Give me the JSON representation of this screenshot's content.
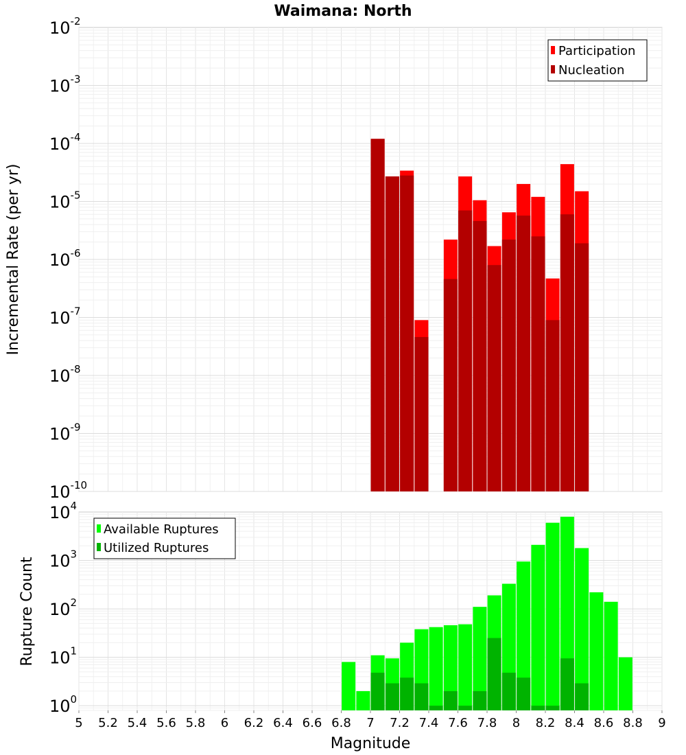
{
  "chart_data": [
    {
      "type": "bar",
      "title": "Waimana: North",
      "xlabel": "Magnitude",
      "ylabel": "Incremental Rate (per yr)",
      "yscale": "log",
      "ylim": [
        1e-10,
        0.01
      ],
      "xlim": [
        5,
        9
      ],
      "grid": true,
      "legend_position": "top-right",
      "x": [
        7.05,
        7.15,
        7.25,
        7.35,
        7.55,
        7.65,
        7.75,
        7.85,
        7.95,
        8.05,
        8.15,
        8.25,
        8.35,
        8.45
      ],
      "series": [
        {
          "name": "Participation",
          "color": "#ff0000",
          "values": [
            0.00012,
            2.7e-05,
            3.4e-05,
            9e-08,
            2.2e-06,
            2.7e-05,
            1.05e-05,
            1.7e-06,
            6.5e-06,
            2e-05,
            1.2e-05,
            4.7e-07,
            4.4e-05,
            1.5e-05
          ]
        },
        {
          "name": "Nucleation",
          "color": "#b30000",
          "values": [
            0.00012,
            2.7e-05,
            2.8e-05,
            4.6e-08,
            4.6e-07,
            7e-06,
            4.6e-06,
            8e-07,
            2.2e-06,
            5.7e-06,
            2.5e-06,
            9e-08,
            6e-06,
            1.9e-06
          ]
        }
      ]
    },
    {
      "type": "bar",
      "xlabel": "Magnitude",
      "ylabel": "Rupture Count",
      "yscale": "log",
      "ylim": [
        0.8,
        10000
      ],
      "xlim": [
        5,
        9
      ],
      "grid": true,
      "legend_position": "top-left",
      "x": [
        6.85,
        6.95,
        7.05,
        7.15,
        7.25,
        7.35,
        7.45,
        7.55,
        7.65,
        7.75,
        7.85,
        7.95,
        8.05,
        8.15,
        8.25,
        8.35,
        8.45,
        8.55,
        8.65,
        8.75
      ],
      "series": [
        {
          "name": "Available Ruptures",
          "color": "#00ff00",
          "values": [
            8,
            2,
            11,
            9.5,
            20,
            38,
            42,
            46,
            48,
            110,
            190,
            330,
            950,
            2100,
            6000,
            8000,
            1800,
            220,
            140,
            10
          ]
        },
        {
          "name": "Utilized Ruptures",
          "color": "#00b300",
          "values": [
            null,
            null,
            4.8,
            2.9,
            3.8,
            2.9,
            1,
            2,
            1,
            2,
            25,
            4.8,
            3.8,
            1,
            1,
            9.5,
            2.9,
            null,
            null,
            null
          ]
        }
      ]
    }
  ],
  "x_ticks": [
    "5",
    "5.2",
    "5.4",
    "5.6",
    "5.8",
    "6",
    "6.2",
    "6.4",
    "6.6",
    "6.8",
    "7",
    "7.2",
    "7.4",
    "7.6",
    "7.8",
    "8",
    "8.2",
    "8.4",
    "8.6",
    "8.8",
    "9"
  ],
  "y_ticks_top": {
    "base": "10",
    "exponents": [
      "-10",
      "-9",
      "-8",
      "-7",
      "-6",
      "-5",
      "-4",
      "-3",
      "-2"
    ]
  },
  "y_ticks_bottom": {
    "base": "10",
    "exponents": [
      "0",
      "1",
      "2",
      "3",
      "4"
    ]
  }
}
